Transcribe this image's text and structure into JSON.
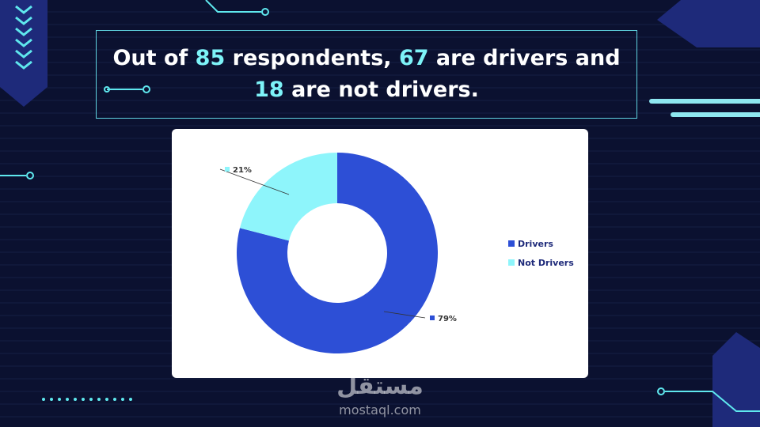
{
  "slide": {
    "title_parts": [
      "Out of ",
      "85",
      " respondents, ",
      "67",
      " are drivers and ",
      "18",
      " are not drivers."
    ]
  },
  "chart_data": {
    "type": "donut",
    "categories": [
      "Drivers",
      "Not Drivers"
    ],
    "values": [
      79,
      21
    ],
    "value_labels": [
      "79%",
      "21%"
    ],
    "colors": [
      "#2d4fd6",
      "#8ef5fb"
    ],
    "legend": "right"
  },
  "watermark": {
    "arabic": "مستقل",
    "latin": "mostaql.com"
  }
}
